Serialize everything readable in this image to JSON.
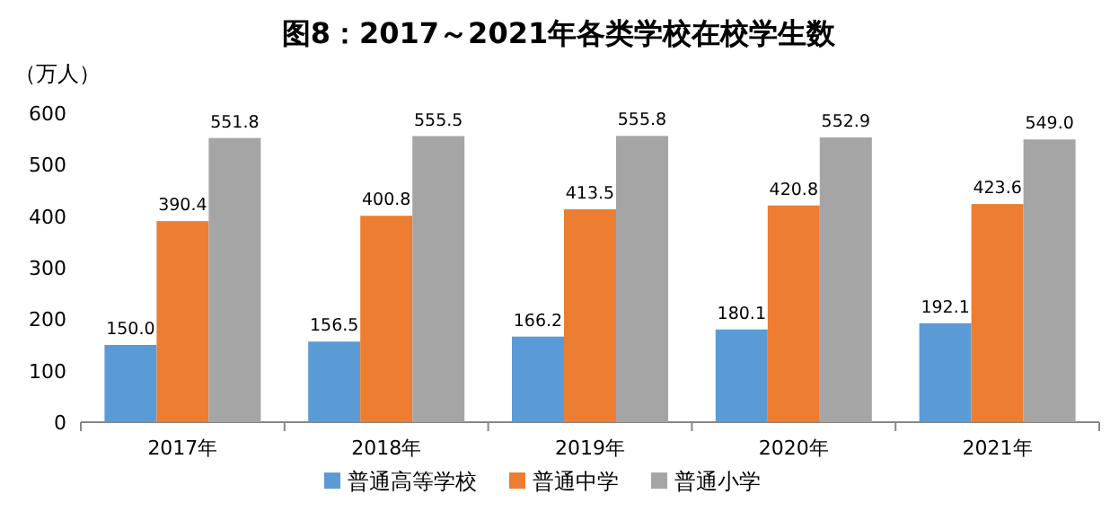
{
  "chart_data": {
    "type": "bar",
    "title": "图8：2017～2021年各类学校在校学生数",
    "ylabel": "（万人）",
    "categories": [
      "2017年",
      "2018年",
      "2019年",
      "2020年",
      "2021年"
    ],
    "series": [
      {
        "name": "普通高等学校",
        "color": "#5b9bd5",
        "values": [
          150.0,
          156.5,
          166.2,
          180.1,
          192.1
        ],
        "value_labels": [
          "150.0",
          "156.5",
          "166.2",
          "180.1",
          "192.1"
        ]
      },
      {
        "name": "普通中学",
        "color": "#ed7d31",
        "values": [
          390.4,
          400.8,
          413.5,
          420.8,
          423.6
        ],
        "value_labels": [
          "390.4",
          "400.8",
          "413.5",
          "420.8",
          "423.6"
        ]
      },
      {
        "name": "普通小学",
        "color": "#a5a5a5",
        "values": [
          551.8,
          555.5,
          555.8,
          552.9,
          549.0
        ],
        "value_labels": [
          "551.8",
          "555.5",
          "555.8",
          "552.9",
          "549.0"
        ]
      }
    ],
    "ylim": [
      0,
      600
    ],
    "yticks": [
      0,
      100,
      200,
      300,
      400,
      500,
      600
    ],
    "grid": false,
    "legend": "bottom"
  }
}
